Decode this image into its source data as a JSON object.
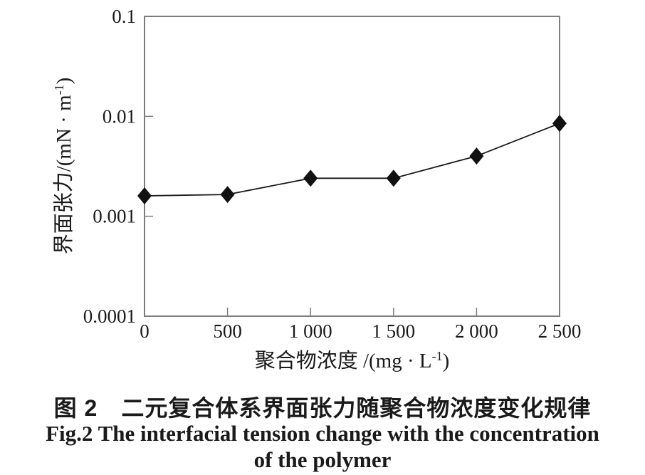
{
  "figure": {
    "caption_cn": "图 2　二元复合体系界面张力随聚合物浓度变化规律",
    "caption_en_line1": "Fig.2 The interfacial tension change with the concentration",
    "caption_en_line2": "of the polymer"
  },
  "axes": {
    "x_title_pre": "聚合物浓度 /(mg · L",
    "x_title_sup": "-1",
    "x_title_post": ")",
    "y_title_pre": "界面张力/(mN · m",
    "y_title_sup": "-1",
    "y_title_post": ")"
  },
  "colors": {
    "axis_border": "#7d7d7d",
    "tick": "#7d7d7d",
    "line": "#1a1a1a",
    "marker": "#111111",
    "text": "#1a1a1a"
  },
  "chart_data": {
    "type": "line",
    "title": "",
    "xlabel": "聚合物浓度 /(mg · L-1)",
    "ylabel": "界面张力/(mN · m-1)",
    "x": [
      0,
      500,
      1000,
      1500,
      2000,
      2500
    ],
    "y": [
      0.0016,
      0.00165,
      0.0024,
      0.0024,
      0.004,
      0.0085
    ],
    "series_name": "二元复合体系界面张力",
    "xlim": [
      0,
      2500
    ],
    "ylim": [
      0.0001,
      0.1
    ],
    "yscale": "log",
    "grid": false,
    "legend": "none",
    "marker": "diamond",
    "x_tick_values": [
      0,
      500,
      1000,
      1500,
      2000,
      2500
    ],
    "x_tick_labels": [
      "0",
      "500",
      "1 000",
      "1 500",
      "2 000",
      "2 500"
    ],
    "y_tick_values": [
      0.1,
      0.01,
      0.001,
      0.0001
    ],
    "y_tick_labels": [
      "0.1",
      "0.01",
      "0.001",
      "0.0001"
    ]
  }
}
